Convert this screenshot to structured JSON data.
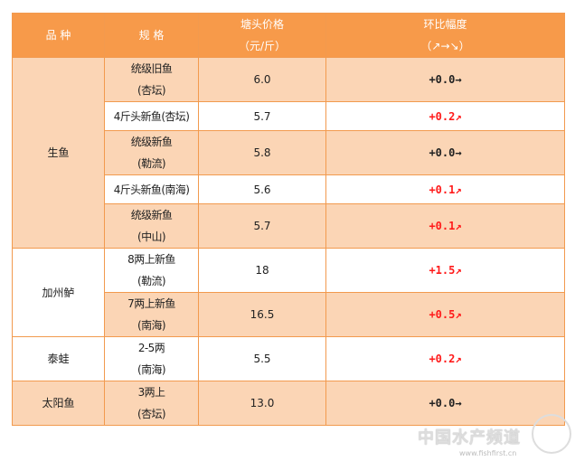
{
  "header": {
    "species": "品 种",
    "spec": "规 格",
    "price_line1": "塘头价格",
    "price_line2": "（元/斤）",
    "change_line1": "环比幅度",
    "change_line2": "（↗→↘）"
  },
  "groups": [
    {
      "species": "生鱼",
      "rows": [
        {
          "spec1": "统级旧鱼",
          "spec2": "(杏坛)",
          "price": "6.0",
          "change": "+0.0→",
          "trend": "flat"
        },
        {
          "spec1": "4斤头新鱼(杏坛)",
          "spec2": "",
          "price": "5.7",
          "change": "+0.2↗",
          "trend": "up"
        },
        {
          "spec1": "统级新鱼",
          "spec2": "(勒流)",
          "price": "5.8",
          "change": "+0.0→",
          "trend": "flat"
        },
        {
          "spec1": "4斤头新鱼(南海)",
          "spec2": "",
          "price": "5.6",
          "change": "+0.1↗",
          "trend": "up"
        },
        {
          "spec1": "统级新鱼",
          "spec2": "(中山)",
          "price": "5.7",
          "change": "+0.1↗",
          "trend": "up"
        }
      ]
    },
    {
      "species": "加州鲈",
      "rows": [
        {
          "spec1": "8两上新鱼",
          "spec2": "(勒流)",
          "price": "18",
          "change": "+1.5↗",
          "trend": "up"
        },
        {
          "spec1": "7两上新鱼",
          "spec2": "(南海)",
          "price": "16.5",
          "change": "+0.5↗",
          "trend": "up"
        }
      ]
    },
    {
      "species": "泰蛙",
      "rows": [
        {
          "spec1": "2-5两",
          "spec2": "(南海)",
          "price": "5.5",
          "change": "+0.2↗",
          "trend": "up"
        }
      ]
    },
    {
      "species": "太阳鱼",
      "rows": [
        {
          "spec1": "3两上",
          "spec2": "(杏坛)",
          "price": "13.0",
          "change": "+0.0→",
          "trend": "flat"
        }
      ]
    }
  ],
  "watermark": {
    "name": "中国水产频道",
    "url": "www.fishfirst.cn"
  },
  "colors": {
    "header": "#f79a4a",
    "shaded": "#fbd5b5",
    "border": "#f29a4e",
    "up": "#ff1a1a"
  }
}
